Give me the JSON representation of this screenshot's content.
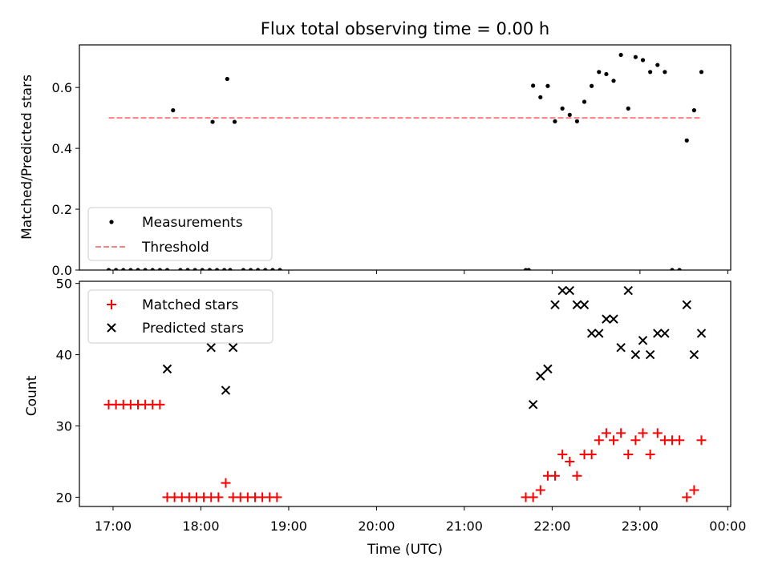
{
  "chart_data": [
    {
      "type": "scatter",
      "title": "Flux total observing time = 0.00 h",
      "xlabel": "",
      "ylabel": "Matched/Predicted stars",
      "ylim": [
        0,
        0.74
      ],
      "yticks": [
        "0.0",
        "0.2",
        "0.4",
        "0.6"
      ],
      "grid": false,
      "legend_position": "lower-left",
      "series": [
        {
          "name": "Measurements",
          "color": "#000000",
          "marker": "dot",
          "points": [
            [
              "16:57",
              0
            ],
            [
              "17:02",
              0
            ],
            [
              "17:07",
              0
            ],
            [
              "17:12",
              0
            ],
            [
              "17:17",
              0
            ],
            [
              "17:22",
              0
            ],
            [
              "17:27",
              0
            ],
            [
              "17:32",
              0
            ],
            [
              "17:37",
              0
            ],
            [
              "17:41",
              0.525
            ],
            [
              "17:46",
              0
            ],
            [
              "17:51",
              0
            ],
            [
              "17:56",
              0
            ],
            [
              "18:01",
              0
            ],
            [
              "18:06",
              0
            ],
            [
              "18:11",
              0
            ],
            [
              "18:16",
              0
            ],
            [
              "18:08",
              0.487
            ],
            [
              "18:18",
              0.628
            ],
            [
              "18:23",
              0.487
            ],
            [
              "18:20",
              0
            ],
            [
              "18:29",
              0
            ],
            [
              "18:34",
              0
            ],
            [
              "18:39",
              0
            ],
            [
              "18:44",
              0
            ],
            [
              "18:49",
              0
            ],
            [
              "18:54",
              0
            ],
            [
              "21:42",
              0
            ],
            [
              "21:44",
              0
            ],
            [
              "21:47",
              0.606
            ],
            [
              "21:52",
              0.568
            ],
            [
              "21:57",
              0.605
            ],
            [
              "22:02",
              0.489
            ],
            [
              "22:07",
              0.531
            ],
            [
              "22:12",
              0.51
            ],
            [
              "22:17",
              0.489
            ],
            [
              "22:22",
              0.553
            ],
            [
              "22:27",
              0.605
            ],
            [
              "22:32",
              0.651
            ],
            [
              "22:37",
              0.644
            ],
            [
              "22:42",
              0.622
            ],
            [
              "22:47",
              0.707
            ],
            [
              "22:52",
              0.531
            ],
            [
              "22:57",
              0.7
            ],
            [
              "23:02",
              0.69
            ],
            [
              "23:07",
              0.651
            ],
            [
              "23:12",
              0.674
            ],
            [
              "23:17",
              0.651
            ],
            [
              "23:22",
              0
            ],
            [
              "23:27",
              0
            ],
            [
              "23:32",
              0.426
            ],
            [
              "23:37",
              0.525
            ],
            [
              "23:42",
              0.651
            ]
          ]
        },
        {
          "name": "Threshold",
          "color": "#ff8080",
          "style": "dashed",
          "x": [
            "16:57",
            "23:42"
          ],
          "y": [
            0.5,
            0.5
          ]
        }
      ]
    },
    {
      "type": "scatter",
      "title": "",
      "xlabel": "Time (UTC)",
      "ylabel": "Count",
      "ylim": [
        18.7,
        50.3
      ],
      "yticks": [
        "20",
        "30",
        "40",
        "50"
      ],
      "xticks": [
        "17:00",
        "18:00",
        "19:00",
        "20:00",
        "21:00",
        "22:00",
        "23:00",
        "00:00"
      ],
      "grid": false,
      "legend_position": "upper-left",
      "series": [
        {
          "name": "Matched stars",
          "color": "#ff0000",
          "marker": "plus",
          "points": [
            [
              "16:57",
              33
            ],
            [
              "17:02",
              33
            ],
            [
              "17:07",
              33
            ],
            [
              "17:12",
              33
            ],
            [
              "17:17",
              33
            ],
            [
              "17:22",
              33
            ],
            [
              "17:27",
              33
            ],
            [
              "17:32",
              33
            ],
            [
              "17:37",
              20
            ],
            [
              "17:42",
              20
            ],
            [
              "17:47",
              20
            ],
            [
              "17:52",
              20
            ],
            [
              "17:57",
              20
            ],
            [
              "18:02",
              20
            ],
            [
              "18:07",
              20
            ],
            [
              "18:12",
              20
            ],
            [
              "18:17",
              22
            ],
            [
              "18:22",
              20
            ],
            [
              "18:27",
              20
            ],
            [
              "18:32",
              20
            ],
            [
              "18:37",
              20
            ],
            [
              "18:42",
              20
            ],
            [
              "18:47",
              20
            ],
            [
              "18:52",
              20
            ],
            [
              "21:42",
              20
            ],
            [
              "21:47",
              20
            ],
            [
              "21:52",
              21
            ],
            [
              "21:57",
              23
            ],
            [
              "22:02",
              23
            ],
            [
              "22:07",
              26
            ],
            [
              "22:12",
              25
            ],
            [
              "22:17",
              23
            ],
            [
              "22:22",
              26
            ],
            [
              "22:27",
              26
            ],
            [
              "22:32",
              28
            ],
            [
              "22:37",
              29
            ],
            [
              "22:42",
              28
            ],
            [
              "22:47",
              29
            ],
            [
              "22:52",
              26
            ],
            [
              "22:57",
              28
            ],
            [
              "23:02",
              29
            ],
            [
              "23:07",
              26
            ],
            [
              "23:12",
              29
            ],
            [
              "23:17",
              28
            ],
            [
              "23:22",
              28
            ],
            [
              "23:27",
              28
            ],
            [
              "23:32",
              20
            ],
            [
              "23:37",
              21
            ],
            [
              "23:42",
              28
            ]
          ]
        },
        {
          "name": "Predicted stars",
          "color": "#000000",
          "marker": "x",
          "points": [
            [
              "17:37",
              38
            ],
            [
              "18:07",
              41
            ],
            [
              "18:17",
              35
            ],
            [
              "18:22",
              41
            ],
            [
              "21:47",
              33
            ],
            [
              "21:52",
              37
            ],
            [
              "21:57",
              38
            ],
            [
              "22:02",
              47
            ],
            [
              "22:07",
              49
            ],
            [
              "22:12",
              49
            ],
            [
              "22:17",
              47
            ],
            [
              "22:22",
              47
            ],
            [
              "22:27",
              43
            ],
            [
              "22:32",
              43
            ],
            [
              "22:37",
              45
            ],
            [
              "22:42",
              45
            ],
            [
              "22:47",
              41
            ],
            [
              "22:52",
              49
            ],
            [
              "22:57",
              40
            ],
            [
              "23:02",
              42
            ],
            [
              "23:07",
              40
            ],
            [
              "23:12",
              43
            ],
            [
              "23:17",
              43
            ],
            [
              "23:32",
              47
            ],
            [
              "23:37",
              40
            ],
            [
              "23:42",
              43
            ]
          ]
        }
      ]
    }
  ]
}
